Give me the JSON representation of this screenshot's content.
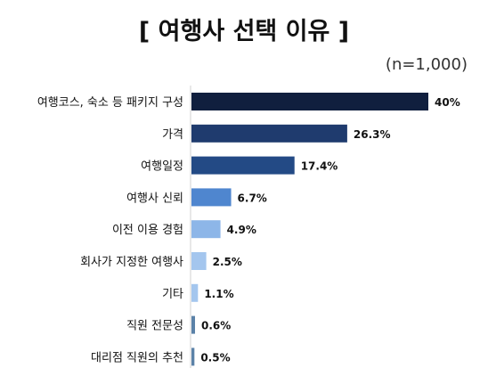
{
  "chart_data": {
    "type": "bar",
    "orientation": "horizontal",
    "title": "[ 여행사 선택 이유 ]",
    "subtitle": "(n=1,000)",
    "categories": [
      "여행코스, 숙소 등 패키지 구성",
      "가격",
      "여행일정",
      "여행사 신뢰",
      "이전 이용 경험",
      "회사가 지정한 여행사",
      "기타",
      "직원 전문성",
      "대리점 직원의 추천"
    ],
    "values": [
      40,
      26.3,
      17.4,
      6.7,
      4.9,
      2.5,
      1.1,
      0.6,
      0.5
    ],
    "value_labels": [
      "40%",
      "26.3%",
      "17.4%",
      "6.7%",
      "4.9%",
      "2.5%",
      "1.1%",
      "0.6%",
      "0.5%"
    ],
    "bar_colors": [
      "#101f3e",
      "#1f3b6e",
      "#234a85",
      "#4f86cf",
      "#8db6e8",
      "#a4c6ee",
      "#a4c6ee",
      "#5b82a8",
      "#5b82a8"
    ],
    "xlim": [
      0,
      40
    ],
    "grid": false,
    "legend": "none"
  }
}
